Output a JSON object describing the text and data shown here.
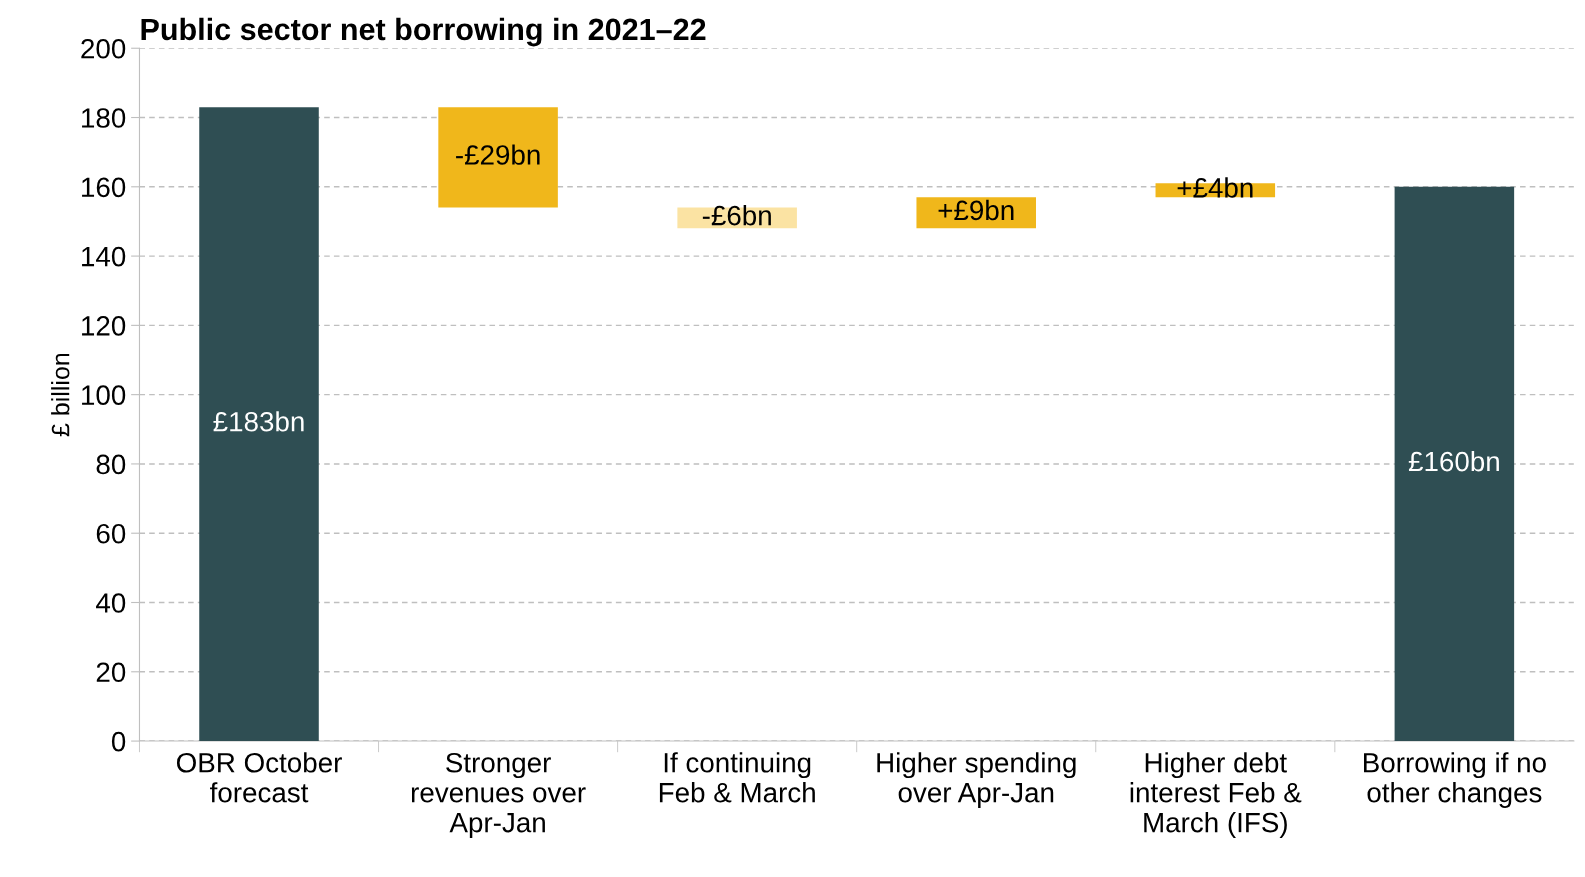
{
  "chart_data": {
    "type": "bar",
    "title": "Public sector net borrowing in 2021–22",
    "ylabel": "£ billion",
    "categories": [
      "OBR October forecast",
      "Stronger revenues over Apr-Jan",
      "If continuing Feb & March",
      "Higher spending over Apr-Jan",
      "Higher debt interest Feb & March (IFS)",
      "Borrowing if no other changes"
    ],
    "values": [
      183,
      -29,
      -6,
      9,
      4,
      160
    ],
    "base": [
      0,
      183,
      154,
      148,
      157,
      0
    ],
    "colors": [
      "#2f4e53",
      "#f0b71b",
      "#fbe3a3",
      "#f0b71b",
      "#f0b71b",
      "#2f4e53"
    ],
    "value_labels": [
      "£183bn",
      "-£29bn",
      "-£6bn",
      "+£9bn",
      "+£4bn",
      "£160bn"
    ],
    "ylim": [
      0,
      200
    ],
    "yticks": [
      0,
      20,
      40,
      60,
      80,
      100,
      120,
      140,
      160,
      180,
      200
    ],
    "grid": "y"
  }
}
